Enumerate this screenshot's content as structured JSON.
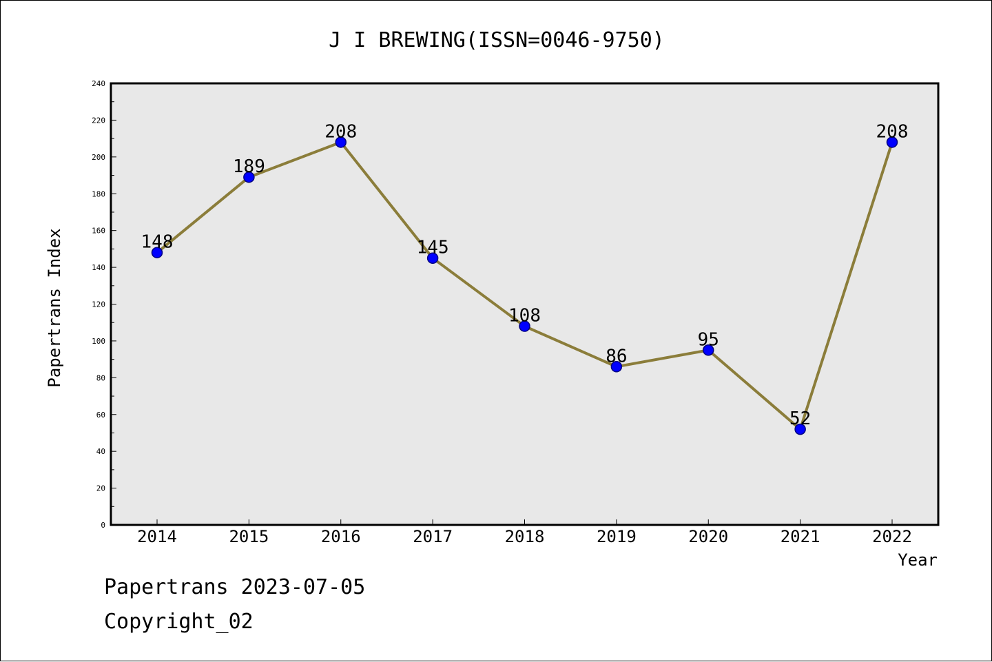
{
  "chart_data": {
    "type": "line",
    "title": "J I BREWING(ISSN=0046-9750)",
    "xlabel": "Year",
    "ylabel": "Papertrans Index",
    "categories": [
      "2014",
      "2015",
      "2016",
      "2017",
      "2018",
      "2019",
      "2020",
      "2021",
      "2022"
    ],
    "series": [
      {
        "values": [
          148,
          189,
          208,
          145,
          108,
          86,
          95,
          52,
          208
        ],
        "data_labels": [
          "148",
          "189",
          "208",
          "145",
          "108",
          "86",
          "95",
          "52",
          "208"
        ]
      }
    ],
    "ylim": [
      0,
      240
    ],
    "yticks": [
      "0",
      "20",
      "40",
      "60",
      "80",
      "100",
      "120",
      "140",
      "160",
      "180",
      "200",
      "220",
      "240"
    ],
    "grid": false,
    "legend": "none",
    "colors": {
      "line": "#8b7d3a",
      "marker_fill": "#0000ff",
      "marker_stroke": "#000080",
      "plot_background": "#e8e8e8"
    }
  },
  "footer": {
    "generated": "Papertrans 2023-07-05",
    "copyright": "Copyright_02"
  }
}
